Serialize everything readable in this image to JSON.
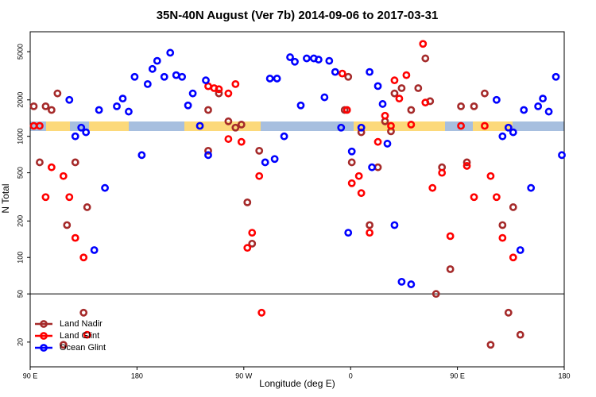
{
  "chart_data": {
    "type": "scatter",
    "title": "35N-40N August (Ver 7b)   2014-09-06 to 2017-03-31",
    "xlabel": "Longitude (deg E)",
    "ylabel": "N Total",
    "log_y": true,
    "xlim": [
      90,
      540
    ],
    "ylim": [
      12.5,
      7300
    ],
    "xticks": [
      {
        "value": 90,
        "label": "90 E"
      },
      180,
      {
        "value": 270,
        "label": "90 W"
      },
      {
        "value": 360,
        "label": "0"
      },
      {
        "value": 450,
        "label": "90 E"
      },
      {
        "value": 540,
        "label": "180"
      }
    ],
    "yticks": [
      20,
      50,
      100,
      200,
      500,
      1000,
      2000,
      5000
    ],
    "hline": 50,
    "legend": "lower left",
    "series": [
      {
        "name": "Land Nadir",
        "color": "#a52a2a",
        "x": [
          93,
          98,
          103,
          108,
          113,
          121,
          128,
          135,
          138,
          118,
          240,
          240,
          249,
          257,
          263,
          268,
          273,
          277,
          283,
          355,
          358,
          361,
          369,
          376,
          383,
          389,
          394,
          397,
          403,
          411,
          417,
          423,
          427,
          432,
          437,
          444,
          453,
          458,
          464,
          473,
          478,
          488,
          493,
          497,
          503
        ],
        "values": [
          1770,
          610,
          1770,
          1650,
          2260,
          185,
          610,
          35,
          260,
          19,
          1650,
          760,
          2260,
          1330,
          1180,
          1250,
          285,
          130,
          760,
          1650,
          3100,
          610,
          1080,
          185,
          555,
          1330,
          1100,
          2260,
          2500,
          1650,
          2500,
          4400,
          1950,
          50,
          555,
          80,
          1770,
          610,
          1770,
          2260,
          19,
          185,
          35,
          260,
          23
        ]
      },
      {
        "name": "Land Glint",
        "color": "#ff0000",
        "x": [
          93,
          98,
          103,
          108,
          118,
          123,
          128,
          135,
          138,
          240,
          245,
          249,
          257,
          263,
          268,
          257,
          273,
          277,
          283,
          285,
          353,
          357,
          361,
          367,
          369,
          376,
          383,
          389,
          394,
          397,
          401,
          407,
          411,
          421,
          423,
          429,
          437,
          444,
          458,
          453,
          464,
          473,
          478,
          483,
          488,
          497
        ],
        "values": [
          1220,
          1220,
          315,
          555,
          470,
          315,
          145,
          100,
          23,
          2590,
          2500,
          2450,
          2260,
          2700,
          900,
          950,
          120,
          160,
          470,
          35,
          3300,
          1650,
          410,
          470,
          340,
          160,
          900,
          1480,
          1220,
          2900,
          2050,
          3200,
          1250,
          5800,
          1900,
          375,
          500,
          150,
          570,
          1220,
          315,
          1220,
          470,
          315,
          145,
          100
        ]
      },
      {
        "name": "Ocean Glint",
        "color": "#0000ff",
        "x": [
          123,
          128,
          133,
          137,
          144,
          148,
          153,
          163,
          168,
          173,
          178,
          184,
          189,
          193,
          197,
          203,
          208,
          213,
          218,
          223,
          227,
          233,
          238,
          240,
          288,
          292,
          296,
          298,
          304,
          309,
          313,
          318,
          323,
          329,
          333,
          338,
          342,
          347,
          352,
          358,
          361,
          369,
          376,
          378,
          383,
          387,
          391,
          397,
          403,
          411,
          483,
          488,
          493,
          497,
          503,
          506,
          512,
          518,
          522,
          527,
          533,
          538
        ],
        "values": [
          2000,
          1000,
          1180,
          1080,
          115,
          1650,
          375,
          1770,
          2050,
          1600,
          3100,
          700,
          2700,
          3600,
          4200,
          3100,
          4900,
          3200,
          3100,
          1800,
          2260,
          1220,
          2900,
          700,
          610,
          3000,
          650,
          3000,
          1000,
          4500,
          4130,
          1800,
          4400,
          4400,
          4300,
          2100,
          4200,
          3400,
          1180,
          160,
          750,
          1180,
          3400,
          555,
          2600,
          1850,
          870,
          185,
          63,
          60,
          2000,
          1000,
          1180,
          1080,
          115,
          1650,
          375,
          1770,
          2050,
          1600,
          3100,
          700
        ]
      }
    ]
  }
}
